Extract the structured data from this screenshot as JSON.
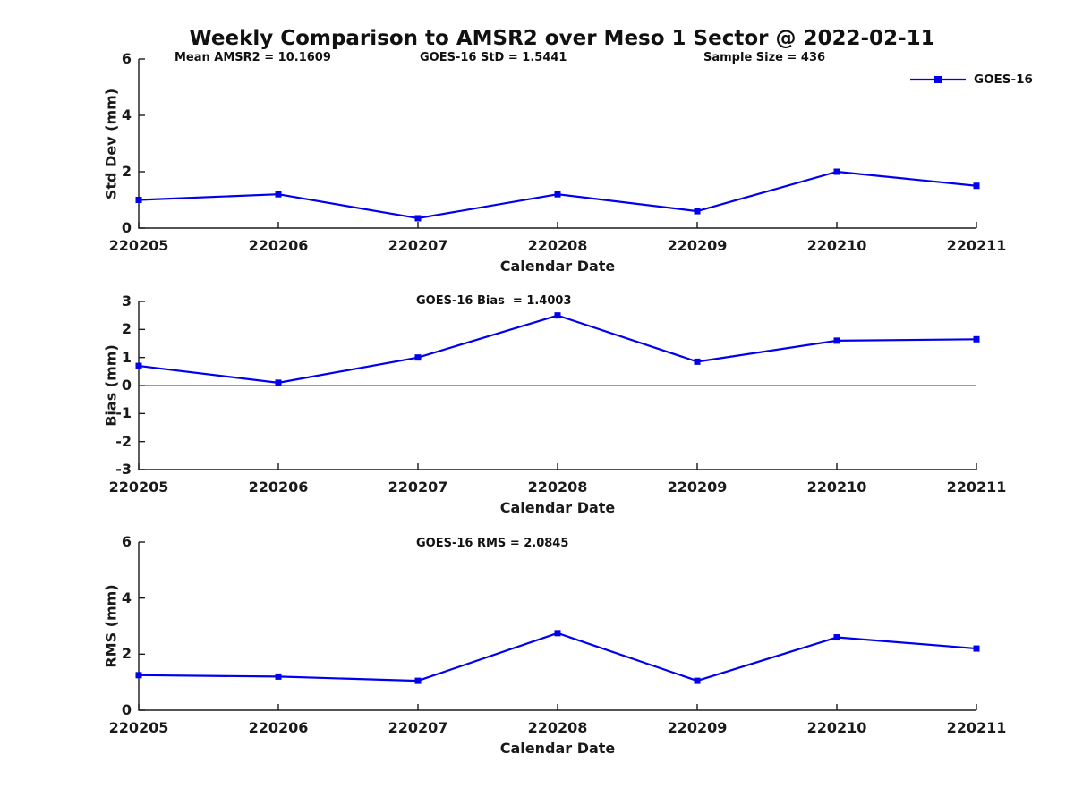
{
  "figure": {
    "title": "Weekly Comparison to AMSR2 over Meso 1 Sector @ 2022-02-11",
    "legend": {
      "label": "GOES-16"
    },
    "line_color": "#0000EE",
    "axis_color": "#1a1a1a",
    "background_color": "#ffffff"
  },
  "chart_data": [
    {
      "type": "line",
      "name": "std-dev",
      "categories": [
        "220205",
        "220206",
        "220207",
        "220208",
        "220209",
        "220210",
        "220211"
      ],
      "series": [
        {
          "name": "GOES-16",
          "values": [
            1.0,
            1.2,
            0.35,
            1.2,
            0.6,
            2.0,
            1.5
          ]
        }
      ],
      "annotations": [
        "Mean AMSR2 = 10.1609",
        "GOES-16 StD = 1.5441",
        "Sample Size = 436"
      ],
      "xlabel": "Calendar Date",
      "ylabel": "Std Dev (mm)",
      "ylim": [
        0,
        6
      ],
      "yticks": [
        0,
        2,
        4,
        6
      ],
      "grid": false,
      "legend_position": "top-right",
      "marker": "square"
    },
    {
      "type": "line",
      "name": "bias",
      "categories": [
        "220205",
        "220206",
        "220207",
        "220208",
        "220209",
        "220210",
        "220211"
      ],
      "series": [
        {
          "name": "GOES-16",
          "values": [
            0.7,
            0.1,
            1.0,
            2.5,
            0.85,
            1.6,
            1.65
          ]
        }
      ],
      "annotations": [
        "GOES-16 Bias  = 1.4003"
      ],
      "xlabel": "Calendar Date",
      "ylabel": "Bias (mm)",
      "ylim": [
        -3,
        3
      ],
      "yticks": [
        -3,
        -2,
        -1,
        0,
        1,
        2,
        3
      ],
      "zero_line": true,
      "grid": false,
      "marker": "square"
    },
    {
      "type": "line",
      "name": "rms",
      "categories": [
        "220205",
        "220206",
        "220207",
        "220208",
        "220209",
        "220210",
        "220211"
      ],
      "series": [
        {
          "name": "GOES-16",
          "values": [
            1.25,
            1.2,
            1.05,
            2.75,
            1.05,
            2.6,
            2.2
          ]
        }
      ],
      "annotations": [
        "GOES-16 RMS = 2.0845"
      ],
      "xlabel": "Calendar Date",
      "ylabel": "RMS (mm)",
      "ylim": [
        0,
        6
      ],
      "yticks": [
        0,
        2,
        4,
        6
      ],
      "grid": false,
      "marker": "square"
    }
  ]
}
